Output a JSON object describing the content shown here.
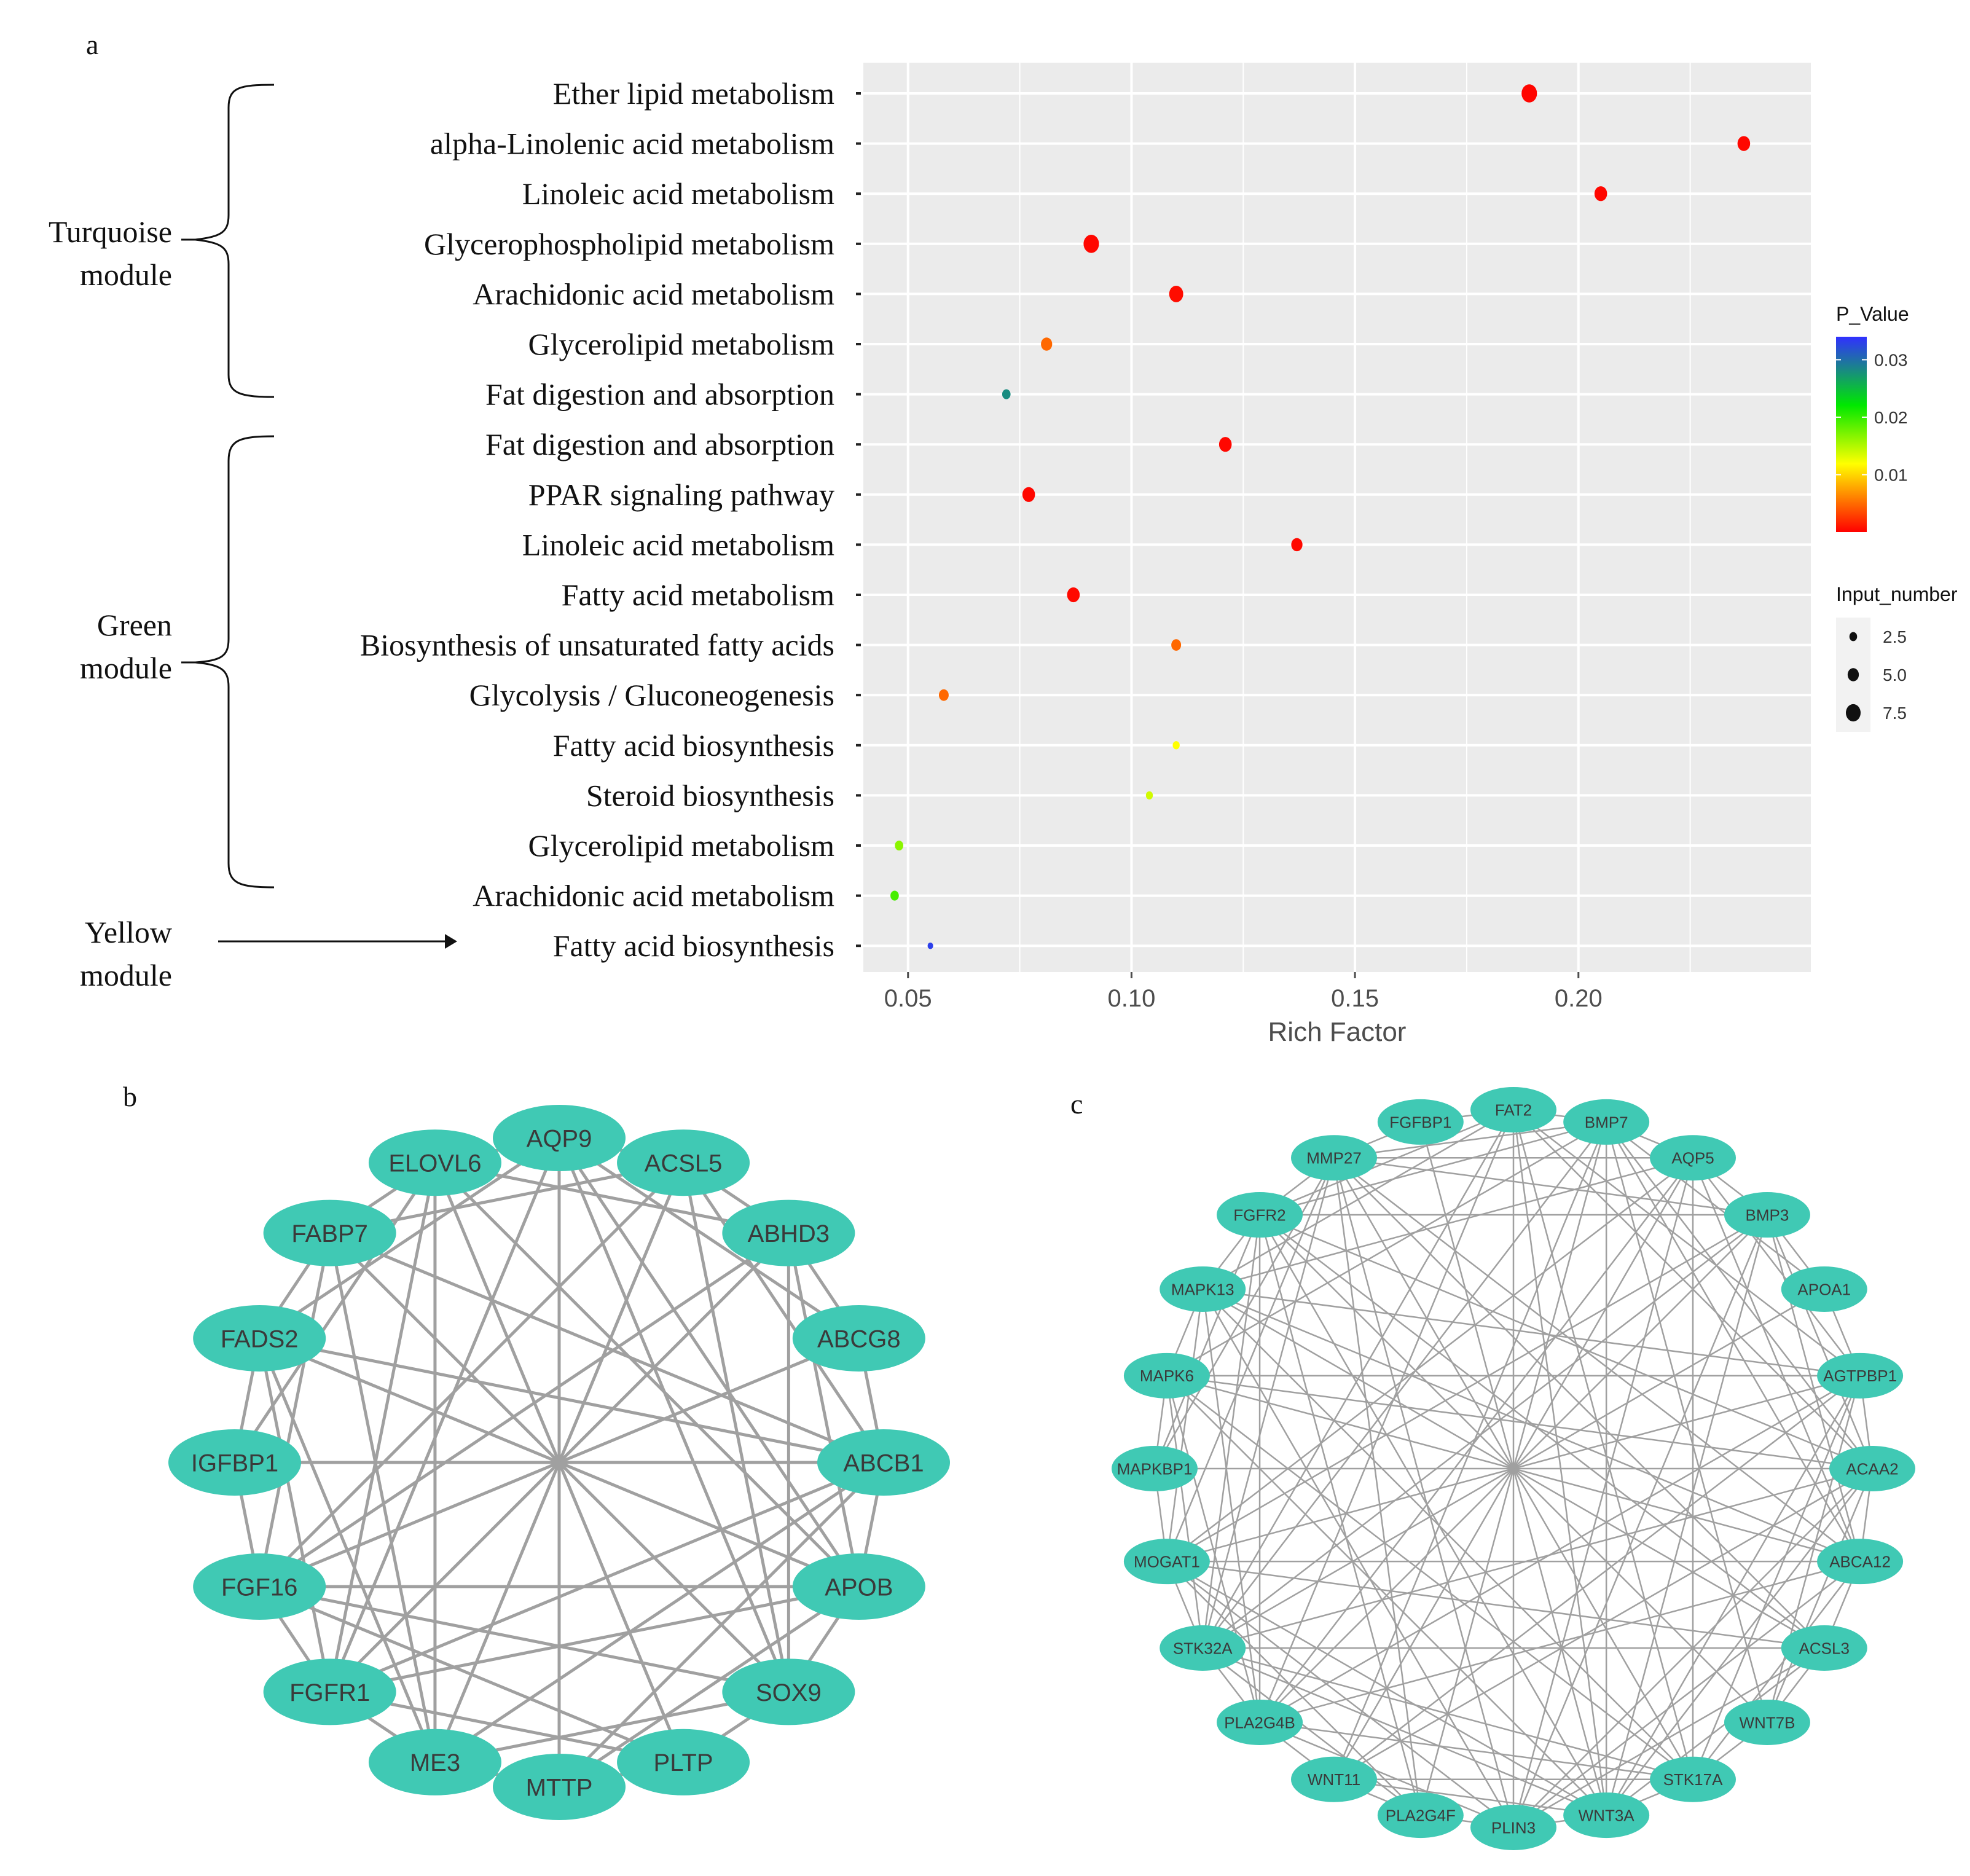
{
  "panels": {
    "a": "a",
    "b": "b",
    "c": "c"
  },
  "modules": {
    "turquoise": [
      "Turquoise",
      "module"
    ],
    "green": [
      "Green",
      "module"
    ],
    "yellow": [
      "Yellow",
      "module"
    ]
  },
  "colors": {
    "panel_bg": "#ebebeb",
    "grid": "#ffffff",
    "node_fill": "#40c9b4",
    "edge": "#a0a0a0",
    "gradient": [
      "#0000ff",
      "#00ff00",
      "#ffff00",
      "#ff0000"
    ]
  },
  "chart_data": {
    "type": "scatter",
    "xlabel": "Rich Factor",
    "ylabel": "",
    "xlim": [
      0.04,
      0.252
    ],
    "xticks": [
      0.05,
      0.1,
      0.15,
      0.2
    ],
    "xtick_labels": [
      "0.05",
      "0.10",
      "0.15",
      "0.20"
    ],
    "grid": true,
    "legend_position": "right",
    "color_legend": {
      "title": "P_Value",
      "range": [
        0.0,
        0.034
      ],
      "ticks": [
        0.03,
        0.02,
        0.01
      ],
      "tick_labels": [
        "0.03",
        "0.02",
        "0.01"
      ]
    },
    "size_legend": {
      "title": "Input_number",
      "values": [
        2.5,
        5.0,
        7.5
      ],
      "labels": [
        "2.5",
        "5.0",
        "7.5"
      ]
    },
    "points": [
      {
        "term": "Ether lipid metabolism",
        "module": "turquoise",
        "rich_factor": 0.189,
        "p_value": 0.0002,
        "input_number": 8
      },
      {
        "term": "alpha-Linolenic acid metabolism",
        "module": "turquoise",
        "rich_factor": 0.237,
        "p_value": 0.0003,
        "input_number": 6
      },
      {
        "term": "Linoleic acid metabolism",
        "module": "turquoise",
        "rich_factor": 0.205,
        "p_value": 0.0003,
        "input_number": 6
      },
      {
        "term": "Glycerophospholipid metabolism",
        "module": "turquoise",
        "rich_factor": 0.091,
        "p_value": 0.0003,
        "input_number": 8
      },
      {
        "term": "Arachidonic acid metabolism",
        "module": "turquoise",
        "rich_factor": 0.11,
        "p_value": 0.0005,
        "input_number": 7
      },
      {
        "term": "Glycerolipid metabolism",
        "module": "turquoise",
        "rich_factor": 0.081,
        "p_value": 0.0045,
        "input_number": 5
      },
      {
        "term": "Fat digestion and absorption",
        "module": "turquoise",
        "rich_factor": 0.072,
        "p_value": 0.028,
        "input_number": 3
      },
      {
        "term": "Fat digestion and absorption",
        "module": "green",
        "rich_factor": 0.121,
        "p_value": 0.0003,
        "input_number": 6
      },
      {
        "term": "PPAR signaling pathway",
        "module": "green",
        "rich_factor": 0.077,
        "p_value": 0.0003,
        "input_number": 6
      },
      {
        "term": "Linoleic acid metabolism",
        "module": "green",
        "rich_factor": 0.137,
        "p_value": 0.0004,
        "input_number": 5
      },
      {
        "term": "Fatty acid metabolism",
        "module": "green",
        "rich_factor": 0.087,
        "p_value": 0.0004,
        "input_number": 6
      },
      {
        "term": "Biosynthesis of unsaturated fatty acids",
        "module": "green",
        "rich_factor": 0.11,
        "p_value": 0.0045,
        "input_number": 4
      },
      {
        "term": "Glycolysis / Gluconeogenesis",
        "module": "green",
        "rich_factor": 0.058,
        "p_value": 0.0045,
        "input_number": 4
      },
      {
        "term": "Fatty acid biosynthesis",
        "module": "green",
        "rich_factor": 0.11,
        "p_value": 0.011,
        "input_number": 2
      },
      {
        "term": "Steroid biosynthesis",
        "module": "green",
        "rich_factor": 0.104,
        "p_value": 0.013,
        "input_number": 2
      },
      {
        "term": "Glycerolipid metabolism",
        "module": "green",
        "rich_factor": 0.048,
        "p_value": 0.016,
        "input_number": 3
      },
      {
        "term": "Arachidonic acid metabolism",
        "module": "green",
        "rich_factor": 0.047,
        "p_value": 0.019,
        "input_number": 3
      },
      {
        "term": "Fatty acid biosynthesis",
        "module": "yellow",
        "rich_factor": 0.055,
        "p_value": 0.033,
        "input_number": 1
      }
    ]
  },
  "network_b": {
    "nodes": [
      "AQP9",
      "ACSL5",
      "ABHD3",
      "ABCG8",
      "ABCB1",
      "APOB",
      "SOX9",
      "PLTP",
      "MTTP",
      "ME3",
      "FGFR1",
      "FGF16",
      "IGFBP1",
      "FADS2",
      "FABP7",
      "ELOVL6"
    ]
  },
  "network_c": {
    "nodes": [
      "BMP7",
      "AQP5",
      "BMP3",
      "APOA1",
      "AGTPBP1",
      "ACAA2",
      "ABCA12",
      "ACSL3",
      "WNT7B",
      "STK17A",
      "WNT3A",
      "PLIN3",
      "PLA2G4F",
      "WNT11",
      "PLA2G4B",
      "STK32A",
      "MOGAT1",
      "MAPKBP1",
      "MAPK6",
      "MAPK13",
      "FGFR2",
      "MMP27",
      "FGFBP1",
      "FAT2"
    ]
  }
}
